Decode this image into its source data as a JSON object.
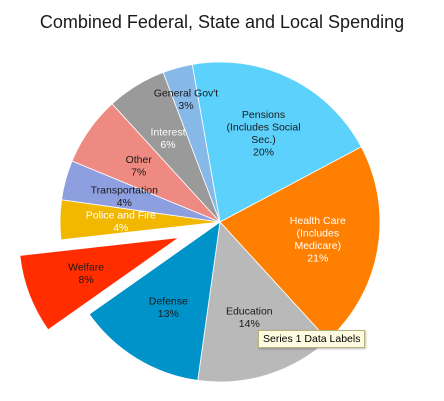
{
  "chart_data": {
    "type": "pie",
    "title": "Combined Federal, State and Local Spending",
    "start_angle_deg": -10,
    "categories": [
      "Pensions (Includes Social Sec.)",
      "Health Care (Includes Medicare)",
      "Education",
      "Defense",
      "Welfare",
      "Police and Fire",
      "Transportation",
      "Other",
      "Interest",
      "General Gov't"
    ],
    "values": [
      20,
      21,
      14,
      13,
      8,
      4,
      4,
      7,
      6,
      3
    ],
    "slices": [
      {
        "lines": [
          "Pensions",
          "(Includes Social",
          "Sec.)",
          "20%"
        ],
        "color": "#5bd1fb",
        "text_color": "#1a1a1a",
        "exploded": false
      },
      {
        "lines": [
          "Health Care",
          "(Includes",
          "Medicare)",
          "21%"
        ],
        "color": "#ff7f00",
        "text_color": "#ffffff",
        "exploded": false
      },
      {
        "lines": [
          "Education",
          "14%"
        ],
        "color": "#b9b9b9",
        "text_color": "#1a1a1a",
        "exploded": false
      },
      {
        "lines": [
          "Defense",
          "13%"
        ],
        "color": "#0093c9",
        "text_color": "#1a1a1a",
        "exploded": false
      },
      {
        "lines": [
          "Welfare",
          "8%"
        ],
        "color": "#ff2d00",
        "text_color": "#1a1a1a",
        "exploded": true
      },
      {
        "lines": [
          "Police and Fire",
          "4%"
        ],
        "color": "#f2b800",
        "text_color": "#ffffff",
        "exploded": false
      },
      {
        "lines": [
          "Transportation",
          "4%"
        ],
        "color": "#8e9fe0",
        "text_color": "#1a1a1a",
        "exploded": false
      },
      {
        "lines": [
          "Other",
          "7%"
        ],
        "color": "#ee8a82",
        "text_color": "#1a1a1a",
        "exploded": false
      },
      {
        "lines": [
          "Interest",
          "6%"
        ],
        "color": "#9a9a9a",
        "text_color": "#ffffff",
        "exploded": false
      },
      {
        "lines": [
          "General Gov't",
          "3%"
        ],
        "color": "#87b9e8",
        "text_color": "#1a1a1a",
        "exploded": false
      }
    ],
    "legend": "none",
    "tooltip": "Series 1 Data Labels"
  }
}
